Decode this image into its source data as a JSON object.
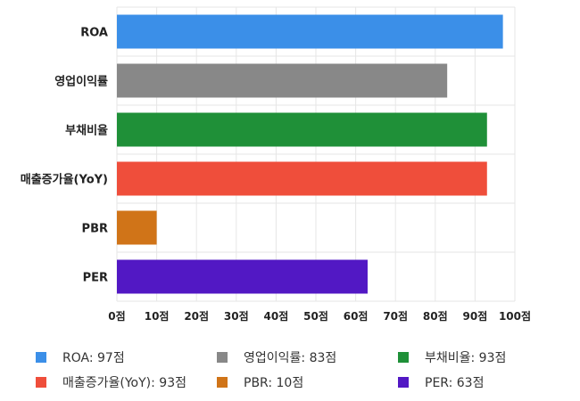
{
  "chart_data": {
    "type": "bar",
    "orientation": "horizontal",
    "categories": [
      "ROA",
      "영업이익률",
      "부채비율",
      "매출증가율(YoY)",
      "PBR",
      "PER"
    ],
    "values": [
      97,
      83,
      93,
      93,
      10,
      63
    ],
    "colors": [
      "#3b8fe8",
      "#888888",
      "#1f9038",
      "#ef4e3b",
      "#d07418",
      "#5218c4"
    ],
    "xlim": [
      0,
      100
    ],
    "xticks": [
      0,
      10,
      20,
      30,
      40,
      50,
      60,
      70,
      80,
      90,
      100
    ],
    "tick_suffix": "점",
    "grid": true,
    "legend": {
      "placement": "bottom",
      "items": [
        {
          "label": "ROA: 97점",
          "color": "#3b8fe8"
        },
        {
          "label": "영업이익률: 83점",
          "color": "#888888"
        },
        {
          "label": "부채비율: 93점",
          "color": "#1f9038"
        },
        {
          "label": "매출증가율(YoY): 93점",
          "color": "#ef4e3b"
        },
        {
          "label": "PBR: 10점",
          "color": "#d07418"
        },
        {
          "label": "PER: 63점",
          "color": "#5218c4"
        }
      ]
    }
  }
}
